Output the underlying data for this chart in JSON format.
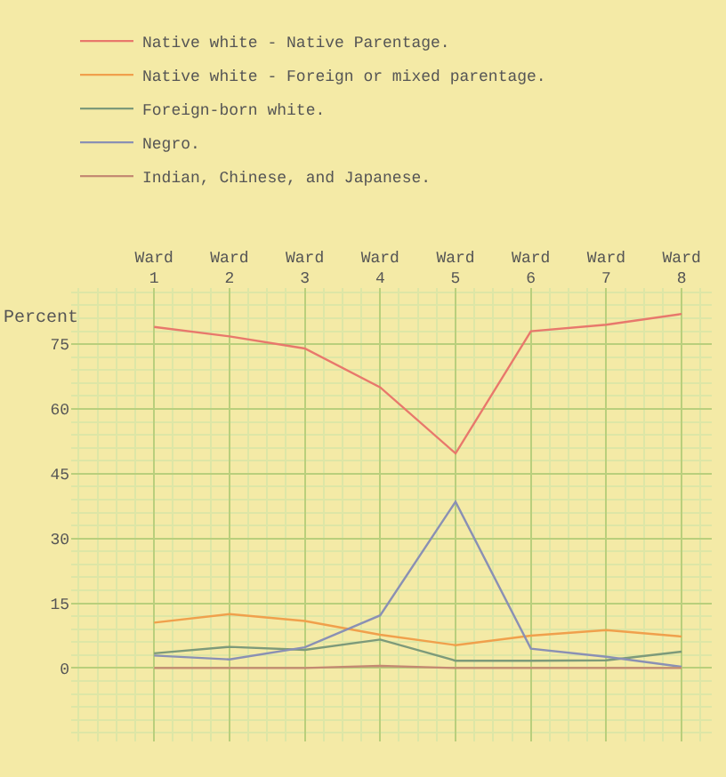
{
  "chart_data": {
    "type": "line",
    "ylabel": "Percent",
    "categories": [
      "Ward\n1",
      "Ward\n2",
      "Ward\n3",
      "Ward\n4",
      "Ward\n5",
      "Ward\n6",
      "Ward\n7",
      "Ward\n8"
    ],
    "series": [
      {
        "name": "Native white - Native Parentage.",
        "color": "#e8786c",
        "values": [
          79,
          76.8,
          74,
          65,
          49.7,
          78,
          79.5,
          82
        ]
      },
      {
        "name": "Native white - Foreign or mixed parentage.",
        "color": "#f0a04c",
        "values": [
          10.5,
          12.5,
          10.9,
          7.7,
          5.3,
          7.5,
          8.8,
          7.3
        ]
      },
      {
        "name": "Foreign-born white.",
        "color": "#7d9a7a",
        "values": [
          3.4,
          4.9,
          4.2,
          6.6,
          1.7,
          1.7,
          1.8,
          3.8
        ]
      },
      {
        "name": "Negro.",
        "color": "#8a90b4",
        "values": [
          2.9,
          2.0,
          4.8,
          12.2,
          38.5,
          4.5,
          2.6,
          0.3
        ]
      },
      {
        "name": "Indian, Chinese, and Japanese.",
        "color": "#c48a72",
        "values": [
          0,
          0,
          0,
          0.5,
          0,
          0,
          0,
          0
        ]
      }
    ],
    "ylim": [
      -17,
      88
    ],
    "yticks": [
      0,
      15,
      30,
      45,
      60,
      75
    ],
    "grid": true,
    "legend": "top left",
    "line_style": "solid",
    "marker": "none"
  }
}
